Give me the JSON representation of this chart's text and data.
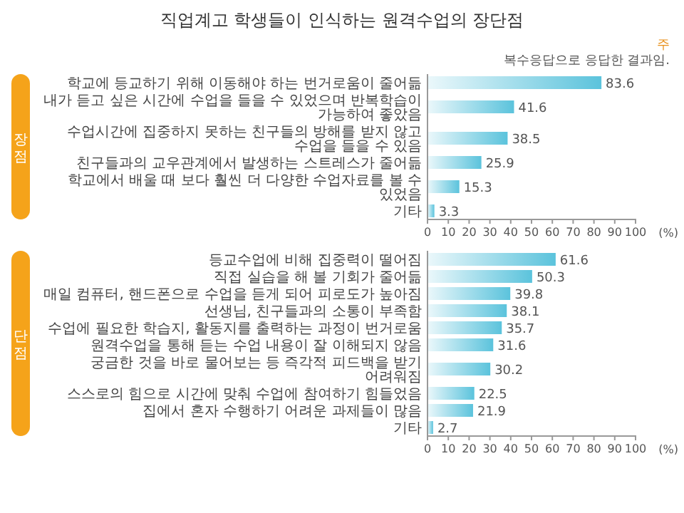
{
  "chart_data": [
    {
      "type": "bar",
      "orientation": "horizontal",
      "title": "직업계고 학생들이 인식하는 원격수업의 장단점",
      "annotations": [
        "주",
        "복수응답으로 응답한 결과임."
      ],
      "ylabel": "장점",
      "xlabel": "(%)",
      "categories": [
        "학교에 등교하기 위해 이동해야 하는 번거로움이 줄어듦",
        "내가 듣고 싶은 시간에 수업을 들을 수 있었으며 반복학습이 가능하여 좋았음",
        "수업시간에 집중하지 못하는 친구들의 방해를 받지 않고 수업을 들을 수 있음",
        "친구들과의 교우관계에서 발생하는 스트레스가 줄어듦",
        "학교에서 배울 때 보다 훨씬 더 다양한 수업자료를 볼 수 있었음",
        "기타"
      ],
      "values": [
        83.6,
        41.6,
        38.5,
        25.9,
        15.3,
        3.3
      ],
      "color": "#5bc3dc",
      "xlim": [
        0,
        100
      ],
      "xticks": [
        0,
        10,
        20,
        30,
        40,
        50,
        60,
        70,
        80,
        90,
        100
      ],
      "data_labels": true
    },
    {
      "type": "bar",
      "orientation": "horizontal",
      "ylabel": "단점",
      "xlabel": "(%)",
      "categories": [
        "등교수업에 비해 집중력이 떨어짐",
        "직접 실습을 해 볼 기회가 줄어듦",
        "매일 컴퓨터, 핸드폰으로 수업을 듣게 되어 피로도가 높아짐",
        "선생님, 친구들과의 소통이 부족함",
        "수업에 필요한 학습지, 활동지를 출력하는 과정이 번거로움",
        "원격수업을 통해 듣는 수업 내용이 잘 이해되지 않음",
        "궁금한 것을 바로 물어보는 등 즉각적 피드백을 받기 어려워짐",
        "스스로의 힘으로 시간에 맞춰 수업에 참여하기 힘들었음",
        "집에서 혼자 수행하기 어려운 과제들이 많음",
        "기타"
      ],
      "values": [
        61.6,
        50.3,
        39.8,
        38.1,
        35.7,
        31.6,
        30.2,
        22.5,
        21.9,
        2.7
      ],
      "color": "#5bc3dc",
      "xlim": [
        0,
        100
      ],
      "xticks": [
        0,
        10,
        20,
        30,
        40,
        50,
        60,
        70,
        80,
        90,
        100
      ],
      "data_labels": true
    }
  ]
}
